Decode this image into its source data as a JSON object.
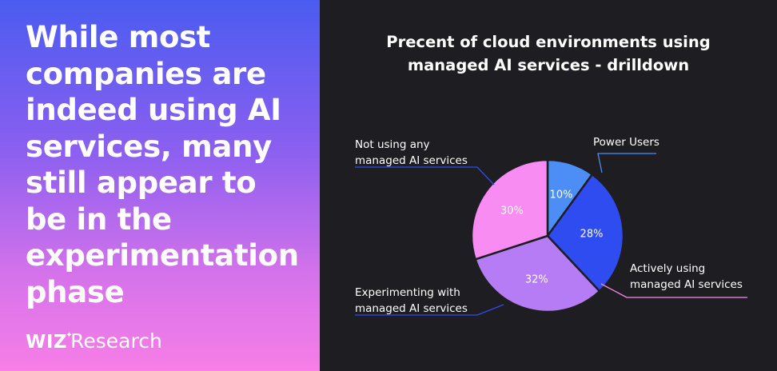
{
  "headline": "While most companies are indeed using AI services, many still appear to be in the experimentation phase",
  "brand": {
    "mark": "WIZ",
    "spark": "✦",
    "name": "Research"
  },
  "colors": {
    "power": "#4c8df6",
    "active": "#2f4cf0",
    "experimenting": "#b67cf5",
    "not_using": "#f88cf3",
    "label_text": "#ffffff",
    "slice_border": "#1e1e22"
  },
  "chart_data": {
    "type": "pie",
    "title": "Precent of cloud environments using managed AI services - drilldown",
    "title_lines": [
      "Precent of cloud environments using",
      "managed AI services - drilldown"
    ],
    "slices": [
      {
        "key": "power",
        "name": "Power Users",
        "label_lines": [
          "Power Users"
        ],
        "value": 10,
        "pct_label": "10%",
        "leader": "#4c8df6"
      },
      {
        "key": "active",
        "name": "Actively using managed AI services",
        "label_lines": [
          "Actively using",
          "managed AI services"
        ],
        "value": 28,
        "pct_label": "28%",
        "leader": "#f88cf3"
      },
      {
        "key": "experimenting",
        "name": "Experimenting with managed AI services",
        "label_lines": [
          "Experimenting with",
          "managed AI services"
        ],
        "value": 32,
        "pct_label": "32%",
        "leader": "#2f4cf0"
      },
      {
        "key": "not_using",
        "name": "Not using any managed AI services",
        "label_lines": [
          "Not using any",
          "managed AI services"
        ],
        "value": 30,
        "pct_label": "30%",
        "leader": "#2f4cf0"
      }
    ]
  }
}
